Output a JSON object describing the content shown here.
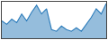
{
  "chart_data": {
    "type": "area",
    "x": [
      0,
      1,
      2,
      3,
      4,
      5,
      6,
      7,
      8,
      9,
      10,
      11,
      12,
      13,
      14,
      15,
      16,
      17,
      18,
      19,
      20,
      21
    ],
    "values": [
      20,
      16,
      22,
      18,
      28,
      20,
      30,
      38,
      28,
      34,
      10,
      8,
      14,
      10,
      8,
      12,
      8,
      16,
      24,
      34,
      28,
      40
    ],
    "color": "#2b7bba",
    "xlim": [
      0,
      21
    ],
    "ylim": [
      0,
      42
    ],
    "grid": false,
    "tick_labels": false
  }
}
